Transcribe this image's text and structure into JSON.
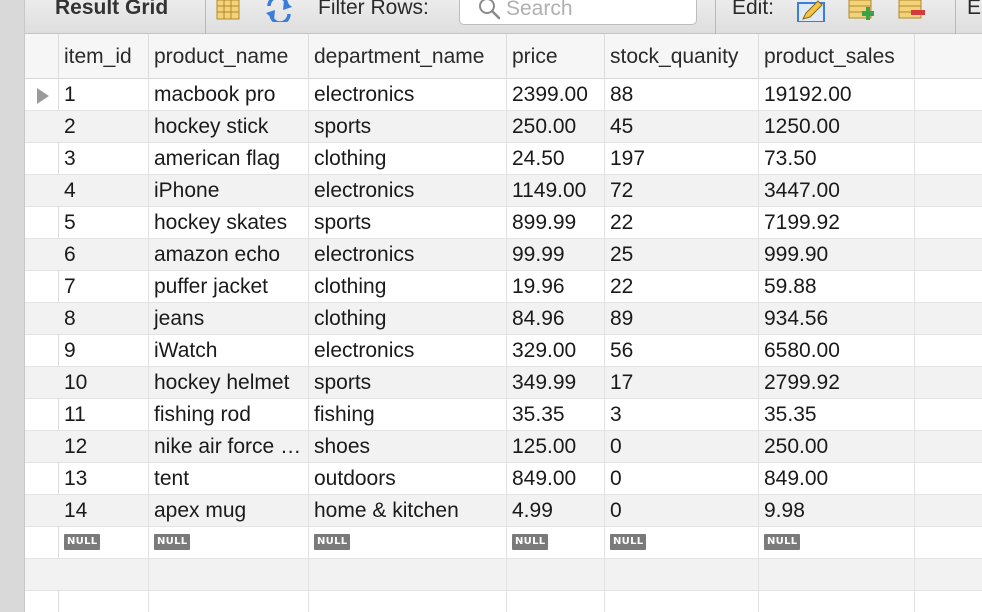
{
  "toolbar": {
    "title": "Result Grid",
    "filter_label": "Filter Rows:",
    "search_placeholder": "Search",
    "edit_label": "Edit:",
    "overflow_label": "E"
  },
  "grid": {
    "columns": [
      "item_id",
      "product_name",
      "department_name",
      "price",
      "stock_quanity",
      "product_sales"
    ],
    "null_label": "NULL",
    "rows": [
      [
        "1",
        "macbook pro",
        "electronics",
        "2399.00",
        "88",
        "19192.00"
      ],
      [
        "2",
        "hockey stick",
        "sports",
        "250.00",
        "45",
        "1250.00"
      ],
      [
        "3",
        "american flag",
        "clothing",
        "24.50",
        "197",
        "73.50"
      ],
      [
        "4",
        "iPhone",
        "electronics",
        "1149.00",
        "72",
        "3447.00"
      ],
      [
        "5",
        "hockey skates",
        "sports",
        "899.99",
        "22",
        "7199.92"
      ],
      [
        "6",
        "amazon echo",
        "electronics",
        "99.99",
        "25",
        "999.90"
      ],
      [
        "7",
        "puffer jacket",
        "clothing",
        "19.96",
        "22",
        "59.88"
      ],
      [
        "8",
        "jeans",
        "clothing",
        "84.96",
        "89",
        "934.56"
      ],
      [
        "9",
        "iWatch",
        "electronics",
        "329.00",
        "56",
        "6580.00"
      ],
      [
        "10",
        "hockey helmet",
        "sports",
        "349.99",
        "17",
        "2799.92"
      ],
      [
        "11",
        "fishing rod",
        "fishing",
        "35.35",
        "3",
        "35.35"
      ],
      [
        "12",
        "nike air force ones",
        "shoes",
        "125.00",
        "0",
        "250.00"
      ],
      [
        "13",
        "tent",
        "outdoors",
        "849.00",
        "0",
        "849.00"
      ],
      [
        "14",
        "apex mug",
        "home & kitchen",
        "4.99",
        "0",
        "9.98"
      ]
    ]
  },
  "icons": {
    "grid_view": "grid-view-icon",
    "refresh": "refresh-icon",
    "search": "search-icon",
    "edit_row": "edit-row-icon",
    "add_row": "add-row-icon",
    "delete_row": "delete-row-icon"
  },
  "colors": {
    "toolbar_bg": "#e4e4e4",
    "alt_row": "#f2f2f2",
    "null_badge": "#7a7a7a",
    "icon_blue": "#3b7dd8",
    "icon_green": "#3aa34a",
    "icon_red": "#d23b3b"
  }
}
